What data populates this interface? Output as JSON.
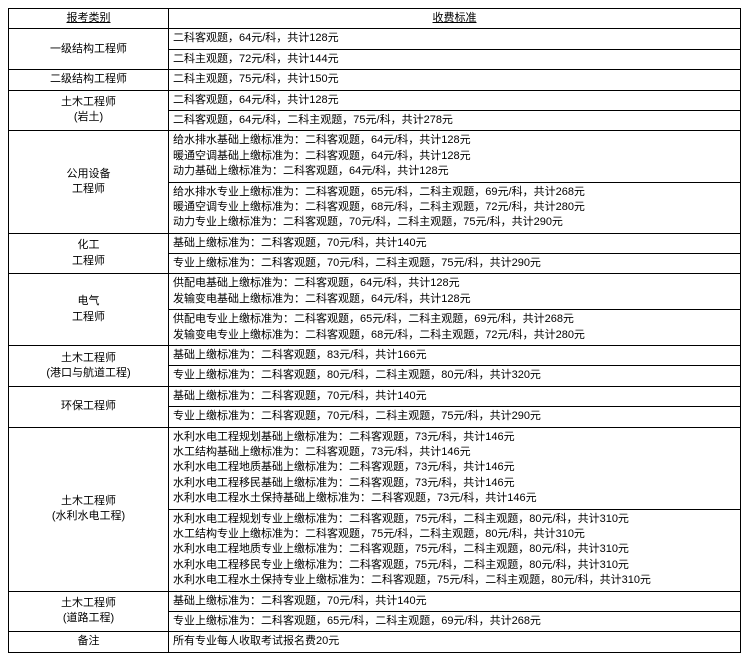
{
  "columns": {
    "category": "报考类别",
    "fee": "收费标准"
  },
  "rows": [
    {
      "cat": "一级结构工程师",
      "span": 2,
      "lines": [
        "二科客观题，64元/科，共计128元",
        "二科主观题，72元/科，共计144元"
      ]
    },
    {
      "cat": "二级结构工程师",
      "span": 1,
      "lines": [
        "二科主观题，75元/科，共计150元"
      ]
    },
    {
      "cat": "土木工程师\n(岩土)",
      "span": 2,
      "lines": [
        "二科客观题，64元/科，共计128元",
        "二科客观题，64元/科，二科主观题，75元/科，共计278元"
      ]
    },
    {
      "cat": "公用设备\n工程师",
      "span": 2,
      "lines": [
        "给水排水基础上缴标准为：二科客观题，64元/科，共计128元\n暖通空调基础上缴标准为：二科客观题，64元/科，共计128元\n动力基础上缴标准为：二科客观题，64元/科，共计128元",
        "给水排水专业上缴标准为：二科客观题，65元/科，二科主观题，69元/科，共计268元\n暖通空调专业上缴标准为：二科客观题，68元/科，二科主观题，72元/科，共计280元\n动力专业上缴标准为：二科客观题，70元/科，二科主观题，75元/科，共计290元"
      ]
    },
    {
      "cat": "化工\n工程师",
      "span": 2,
      "lines": [
        "基础上缴标准为：二科客观题，70元/科，共计140元",
        "专业上缴标准为：二科客观题，70元/科，二科主观题，75元/科，共计290元"
      ]
    },
    {
      "cat": "电气\n工程师",
      "span": 2,
      "lines": [
        "供配电基础上缴标准为：二科客观题，64元/科，共计128元\n发输变电基础上缴标准为：二科客观题，64元/科，共计128元",
        "供配电专业上缴标准为：二科客观题，65元/科，二科主观题，69元/科，共计268元\n发输变电专业上缴标准为：二科客观题，68元/科，二科主观题，72元/科，共计280元"
      ]
    },
    {
      "cat": "土木工程师\n(港口与航道工程)",
      "span": 2,
      "lines": [
        "基础上缴标准为：二科客观题，83元/科，共计166元",
        "专业上缴标准为：二科客观题，80元/科，二科主观题，80元/科，共计320元"
      ]
    },
    {
      "cat": "环保工程师",
      "span": 2,
      "lines": [
        "基础上缴标准为：二科客观题，70元/科，共计140元",
        "专业上缴标准为：二科客观题，70元/科，二科主观题，75元/科，共计290元"
      ]
    },
    {
      "cat": "土木工程师\n(水利水电工程)",
      "span": 2,
      "lines": [
        "水利水电工程规划基础上缴标准为：二科客观题，73元/科，共计146元\n水工结构基础上缴标准为：二科客观题，73元/科，共计146元\n水利水电工程地质基础上缴标准为：二科客观题，73元/科，共计146元\n水利水电工程移民基础上缴标准为：二科客观题，73元/科，共计146元\n水利水电工程水土保持基础上缴标准为：二科客观题，73元/科，共计146元",
        "水利水电工程规划专业上缴标准为：二科客观题，75元/科，二科主观题，80元/科，共计310元\n水工结构专业上缴标准为：二科客观题，75元/科，二科主观题，80元/科，共计310元\n水利水电工程地质专业上缴标准为：二科客观题，75元/科，二科主观题，80元/科，共计310元\n水利水电工程移民专业上缴标准为：二科客观题，75元/科，二科主观题，80元/科，共计310元\n水利水电工程水土保持专业上缴标准为：二科客观题，75元/科，二科主观题，80元/科，共计310元"
      ]
    },
    {
      "cat": "土木工程师\n(道路工程)",
      "span": 2,
      "lines": [
        "基础上缴标准为：二科客观题，70元/科，共计140元",
        "专业上缴标准为：二科客观题，65元/科，二科主观题，69元/科，共计268元"
      ]
    }
  ],
  "note": {
    "label": "备注",
    "text": "所有专业每人收取考试报名费20元"
  }
}
